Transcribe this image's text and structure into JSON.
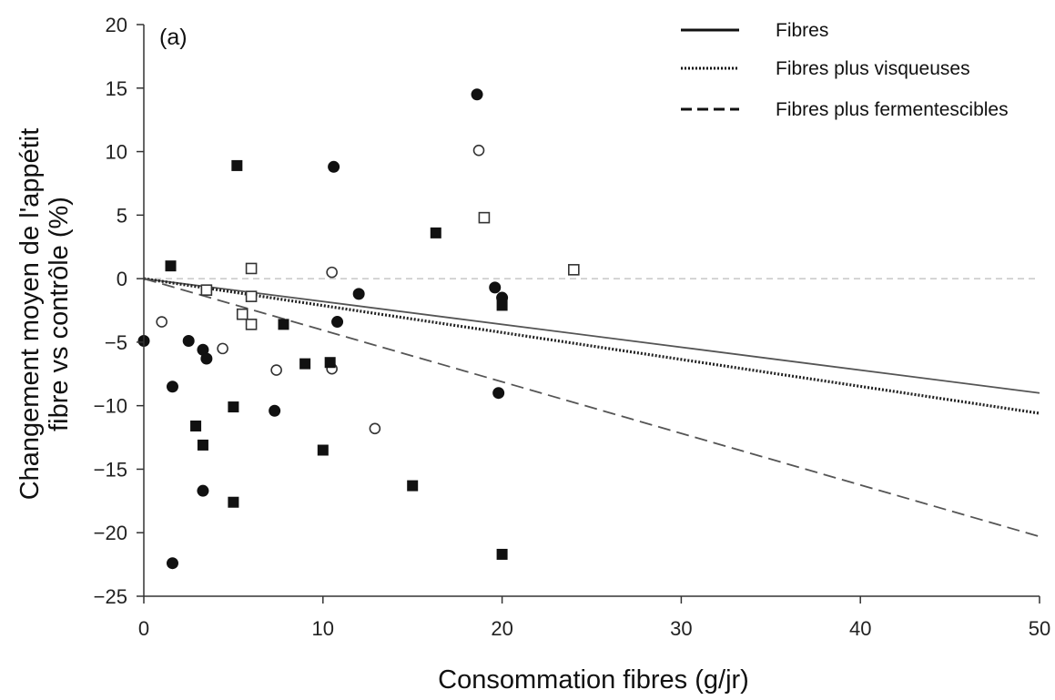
{
  "chart_data": {
    "type": "scatter",
    "panel_label": "(a)",
    "xlabel": "Consommation fibres (g/jr)",
    "ylabel_lines": [
      "Changement moyen de l'appétit",
      "fibre vs contrôle (%)"
    ],
    "xlim": [
      0,
      50
    ],
    "ylim": [
      -25,
      20
    ],
    "x_ticks": [
      0,
      10,
      20,
      30,
      40,
      50
    ],
    "y_ticks": [
      20,
      15,
      10,
      5,
      0,
      -5,
      -10,
      -15,
      -20,
      -25
    ],
    "y_tick_labels": [
      "20",
      "15",
      "10",
      "5",
      "0",
      "−5",
      "−10",
      "−15",
      "−20",
      "−25"
    ],
    "zero_reference_line": true,
    "legend_position": "top-right",
    "legend": [
      {
        "label": "Fibres",
        "style": "solid"
      },
      {
        "label": "Fibres plus visqueuses",
        "style": "dotted"
      },
      {
        "label": "Fibres plus fermentescibles",
        "style": "dashed"
      }
    ],
    "lines": [
      {
        "label": "Fibres",
        "style": "solid",
        "color": "#555555",
        "points": [
          [
            0,
            0
          ],
          [
            50,
            -9.0
          ]
        ]
      },
      {
        "label": "Fibres plus visqueuses",
        "style": "dotted",
        "color": "#222222",
        "points": [
          [
            0,
            0
          ],
          [
            50,
            -10.6
          ]
        ]
      },
      {
        "label": "Fibres plus fermentescibles",
        "style": "dashed",
        "color": "#555555",
        "points": [
          [
            0,
            0
          ],
          [
            50,
            -20.3
          ]
        ]
      }
    ],
    "series": [
      {
        "marker": "filled-circle",
        "points": [
          [
            0,
            -4.9
          ],
          [
            1.6,
            -8.5
          ],
          [
            1.6,
            -22.4
          ],
          [
            2.5,
            -4.9
          ],
          [
            3.3,
            -5.6
          ],
          [
            3.3,
            -16.7
          ],
          [
            3.5,
            -6.3
          ],
          [
            7.3,
            -10.4
          ],
          [
            10.6,
            8.8
          ],
          [
            10.8,
            -3.4
          ],
          [
            12.0,
            -1.2
          ],
          [
            18.6,
            14.5
          ],
          [
            19.6,
            -0.7
          ],
          [
            19.8,
            -9.0
          ],
          [
            20.0,
            -1.5
          ]
        ]
      },
      {
        "marker": "open-circle",
        "points": [
          [
            1.0,
            -3.4
          ],
          [
            4.4,
            -5.5
          ],
          [
            7.4,
            -7.2
          ],
          [
            10.5,
            0.5
          ],
          [
            10.5,
            -7.1
          ],
          [
            12.9,
            -11.8
          ],
          [
            18.7,
            10.1
          ]
        ]
      },
      {
        "marker": "filled-square",
        "points": [
          [
            1.5,
            1.0
          ],
          [
            2.9,
            -11.6
          ],
          [
            3.3,
            -13.1
          ],
          [
            5.0,
            -10.1
          ],
          [
            5.0,
            -17.6
          ],
          [
            5.2,
            8.9
          ],
          [
            7.8,
            -3.6
          ],
          [
            9.0,
            -6.7
          ],
          [
            10.0,
            -13.5
          ],
          [
            10.4,
            -6.6
          ],
          [
            15.0,
            -16.3
          ],
          [
            16.3,
            3.6
          ],
          [
            20.0,
            -2.1
          ],
          [
            20.0,
            -21.7
          ]
        ]
      },
      {
        "marker": "open-square",
        "points": [
          [
            3.5,
            -0.9
          ],
          [
            5.5,
            -2.8
          ],
          [
            6.0,
            0.8
          ],
          [
            6.0,
            -1.4
          ],
          [
            6.0,
            -3.6
          ],
          [
            19.0,
            4.8
          ],
          [
            24.0,
            0.7
          ]
        ]
      }
    ]
  }
}
